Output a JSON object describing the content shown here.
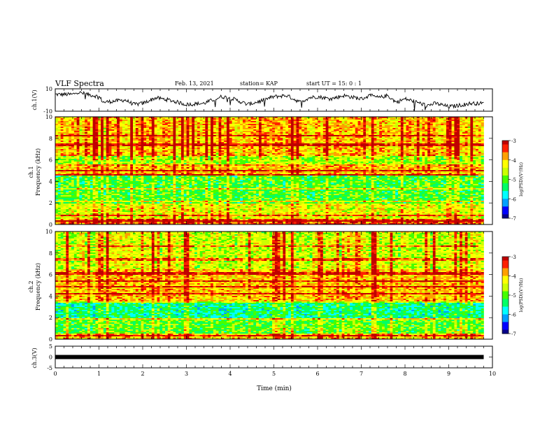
{
  "header": {
    "title": "VLF Spectra",
    "date": "Feb. 13, 2021",
    "station": "station= KAP",
    "start": "start UT = 15: 0 : 1"
  },
  "colors": {
    "colormap": [
      "#08008a",
      "#0000ff",
      "#00a0ff",
      "#00ffff",
      "#00ff66",
      "#44ff00",
      "#ccff00",
      "#ffff00",
      "#ffa000",
      "#ff2000",
      "#c00000"
    ]
  },
  "chart_data": [
    {
      "type": "line",
      "ylabel": "ch.1(V)",
      "ylim": [
        -10,
        10
      ],
      "yticks": [
        "10",
        "-10"
      ],
      "xlim": [
        0,
        10
      ],
      "x_end": 9.8,
      "x": [
        0,
        0.4,
        0.5,
        1.0,
        1.1,
        1.6,
        1.8,
        2.0,
        2.3,
        2.6,
        3.0,
        3.4,
        3.8,
        4.0,
        4.4,
        4.6,
        5.0,
        5.3,
        5.6,
        5.8,
        6.0,
        6.3,
        6.6,
        7.0,
        7.2,
        7.4,
        7.6,
        7.8,
        8.0,
        8.2,
        8.5,
        8.7,
        9.0,
        9.2,
        9.5,
        9.8
      ],
      "y": [
        5,
        5,
        7,
        3,
        -2,
        0,
        -4,
        -3,
        2,
        0,
        -4,
        -3,
        3,
        2,
        -4,
        -2,
        3,
        4,
        -2,
        2,
        3,
        1,
        4,
        1,
        4,
        2,
        4,
        -2,
        1,
        -1,
        -5,
        -3,
        -6,
        -5,
        -3,
        -3
      ]
    },
    {
      "type": "heatmap",
      "ylabel": "ch.1\nFrequency (kHz)",
      "ylim": [
        0,
        10
      ],
      "yticks": [
        "0",
        "2",
        "4",
        "6",
        "8",
        "10"
      ],
      "colorbar": {
        "label": "log(PSD)(V²/Hz)",
        "range": [
          -7,
          -3
        ],
        "ticks": [
          "-3",
          "-4",
          "-5",
          "-6",
          "-7"
        ]
      },
      "bands_khz": [
        {
          "f0": 0,
          "f1": 0.5,
          "level": -3.5
        },
        {
          "f0": 0.5,
          "f1": 2,
          "level": -4.4
        },
        {
          "f0": 2,
          "f1": 4.5,
          "level": -5.1
        },
        {
          "f0": 4.5,
          "f1": 5.5,
          "level": -4.0
        },
        {
          "f0": 5.5,
          "f1": 6.5,
          "level": -4.7
        },
        {
          "f0": 6.5,
          "f1": 10,
          "level": -4.0
        }
      ],
      "lines_khz": [
        0.3,
        0.8,
        2.2,
        3.3,
        4.6,
        5.0,
        5.5,
        6.4,
        7.4,
        8.3
      ]
    },
    {
      "type": "heatmap",
      "ylabel": "ch.2\nFrequency (kHz)",
      "ylim": [
        0,
        10
      ],
      "yticks": [
        "0",
        "2",
        "4",
        "6",
        "8",
        "10"
      ],
      "colorbar": {
        "label": "log(PSD)(V²/Hz)",
        "range": [
          -7,
          -3
        ],
        "ticks": [
          "-3",
          "-4",
          "-5",
          "-6",
          "-7"
        ]
      },
      "bands_khz": [
        {
          "f0": 0,
          "f1": 0.5,
          "level": -4.0
        },
        {
          "f0": 0.5,
          "f1": 2,
          "level": -5.0
        },
        {
          "f0": 2,
          "f1": 3.5,
          "level": -5.5
        },
        {
          "f0": 3.5,
          "f1": 6.5,
          "level": -4.0
        },
        {
          "f0": 6.5,
          "f1": 10,
          "level": -4.5
        }
      ],
      "lines_khz": [
        0.3,
        1.9,
        3.5,
        4.2,
        4.9,
        5.4,
        6.1,
        7.4,
        8.6
      ]
    },
    {
      "type": "line",
      "ylabel": "ch.3(V)",
      "ylim": [
        -5,
        5
      ],
      "yticks": [
        "5",
        "0",
        "-5"
      ],
      "xlim": [
        0,
        10
      ],
      "x_end": 9.8,
      "x": [
        0,
        9.8
      ],
      "y": [
        0,
        0
      ],
      "xlabel": "Time (min)",
      "xticks": [
        "0",
        "1",
        "2",
        "3",
        "4",
        "5",
        "6",
        "7",
        "8",
        "9",
        "10"
      ]
    }
  ]
}
